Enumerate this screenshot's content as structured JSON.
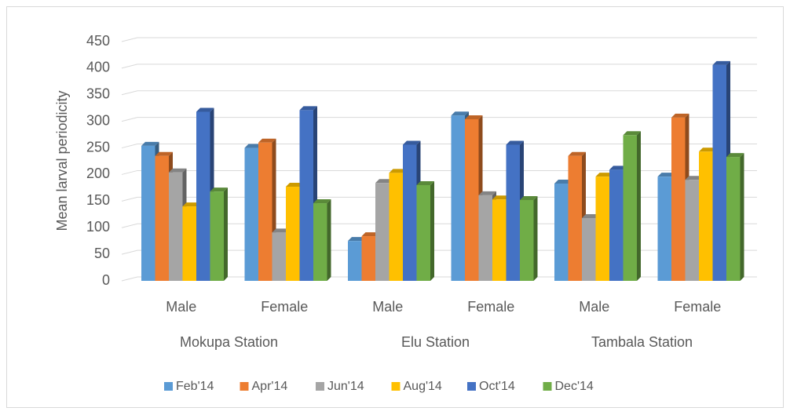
{
  "chart_data": {
    "type": "bar3d",
    "y_label": "Mean larval periodicity",
    "categories": [
      "Male",
      "Female",
      "Male",
      "Female",
      "Male",
      "Female"
    ],
    "groups": [
      "Mokupa Station",
      "Elu Station",
      "Tambala Station"
    ],
    "ylim": [
      0,
      450
    ],
    "yticks": [
      0,
      50,
      100,
      150,
      200,
      250,
      300,
      350,
      400,
      450
    ],
    "grid": true,
    "legend": "bottom",
    "series": [
      {
        "name": "Feb'14",
        "color": "#5b9bd5",
        "values": [
          254,
          250,
          75,
          311,
          183,
          196
        ]
      },
      {
        "name": "Apr'14",
        "color": "#ed7d31",
        "values": [
          235,
          260,
          84,
          304,
          235,
          307
        ]
      },
      {
        "name": "Jun'14",
        "color": "#a5a5a5",
        "values": [
          204,
          91,
          184,
          161,
          118,
          190
        ]
      },
      {
        "name": "Aug'14",
        "color": "#ffc000",
        "values": [
          140,
          177,
          203,
          153,
          196,
          243
        ]
      },
      {
        "name": "Oct'14",
        "color": "#4472c4",
        "values": [
          318,
          321,
          256,
          256,
          209,
          406
        ]
      },
      {
        "name": "Dec'14",
        "color": "#70ad47",
        "values": [
          168,
          146,
          180,
          152,
          274,
          233
        ]
      }
    ]
  }
}
